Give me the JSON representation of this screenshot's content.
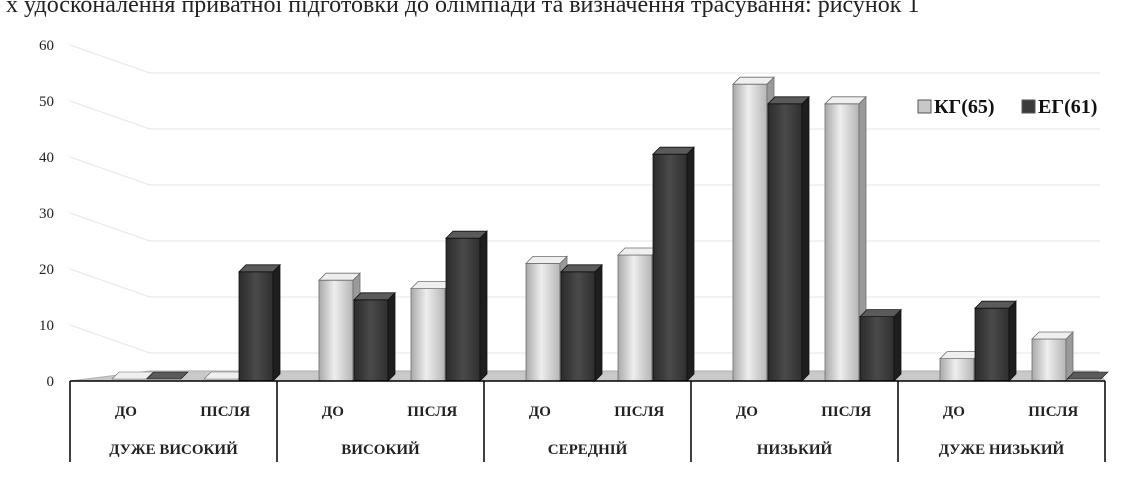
{
  "cut_text": "х удосконалення приватної підготовки до олімпіади та визначення трасування: рисунок 1",
  "chart_data": {
    "type": "bar",
    "ylim": [
      0,
      60
    ],
    "yticks": [
      0,
      10,
      20,
      30,
      40,
      50,
      60
    ],
    "groups": [
      "ДУЖЕ ВИСОКИЙ",
      "ВИСОКИЙ",
      "СЕРЕДНІЙ",
      "НИЗЬКИЙ",
      "ДУЖЕ НИЗЬКИЙ"
    ],
    "subcategories": [
      "ДО",
      "ПІСЛЯ"
    ],
    "categories": [
      "ДУЖЕ ВИСОКИЙ ДО",
      "ДУЖЕ ВИСОКИЙ ПІСЛЯ",
      "ВИСОКИЙ ДО",
      "ВИСОКИЙ ПІСЛЯ",
      "СЕРЕДНІЙ ДО",
      "СЕРЕДНІЙ ПІСЛЯ",
      "НИЗЬКИЙ ДО",
      "НИЗЬКИЙ ПІСЛЯ",
      "ДУЖЕ НИЗЬКИЙ ДО",
      "ДУЖЕ НИЗЬКИЙ ПІСЛЯ"
    ],
    "series": [
      {
        "name": "КГ(65)",
        "color": "#c8c8c8",
        "values": [
          0,
          0,
          18,
          16.5,
          21,
          22.5,
          53,
          49.5,
          4,
          7.5
        ]
      },
      {
        "name": "ЕГ(61)",
        "color": "#3a3a3a",
        "values": [
          0,
          19.5,
          14.5,
          25.5,
          19.5,
          40.5,
          49.5,
          11.5,
          13,
          0
        ]
      }
    ],
    "legend": "right",
    "grid": true
  }
}
